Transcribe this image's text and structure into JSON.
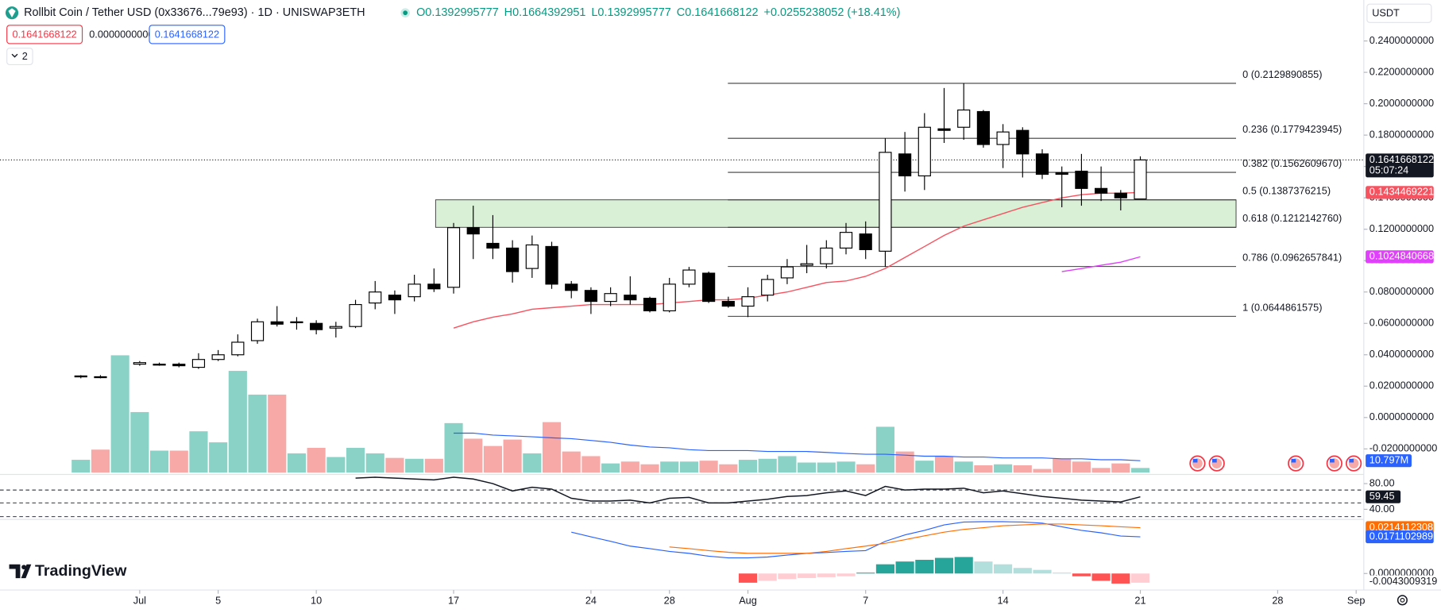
{
  "header": {
    "symbol": "Rollbit Coin / Tether USD (0x33676...79e93) · 1D · UNISWAP3ETH",
    "ohlc": [
      "O0.1392995777",
      "H0.1664392951",
      "L0.1392995777",
      "C0.1641668122",
      "+0.0255238052 (+18.41%)"
    ],
    "bid": "0.1641668122",
    "spread": "0.0000000000",
    "ask": "0.1641668122",
    "indicators_count": "2",
    "currency": "USDT",
    "brand": "TradingView"
  },
  "chart_data": [
    {
      "type": "candlestick",
      "xlim": [
        -4.12,
        65.39
      ],
      "ylim": [
        -0.0351,
        0.2661
      ],
      "xticks": [
        {
          "value": 3,
          "label": "Jul"
        },
        {
          "value": 7,
          "label": "5"
        },
        {
          "value": 12,
          "label": "10"
        },
        {
          "value": 19,
          "label": "17"
        },
        {
          "value": 26,
          "label": "24"
        },
        {
          "value": 30,
          "label": "28"
        },
        {
          "value": 34,
          "label": "Aug"
        },
        {
          "value": 40,
          "label": "7"
        },
        {
          "value": 47,
          "label": "14"
        },
        {
          "value": 54,
          "label": "21"
        },
        {
          "value": 61,
          "label": "28"
        },
        {
          "value": 65,
          "label": "Sep"
        }
      ],
      "yticks": [
        {
          "value": 0.24,
          "label": "0.2400000000"
        },
        {
          "value": 0.22,
          "label": "0.2200000000"
        },
        {
          "value": 0.2,
          "label": "0.2000000000"
        },
        {
          "value": 0.18,
          "label": "0.1800000000"
        },
        {
          "value": 0.16,
          "label": "0.1600000000"
        },
        {
          "value": 0.14,
          "label": "0.1400000000"
        },
        {
          "value": 0.12,
          "label": "0.1200000000"
        },
        {
          "value": 0.1,
          "label": "0.1000000000"
        },
        {
          "value": 0.08,
          "label": "0.0800000000"
        },
        {
          "value": 0.06,
          "label": "0.0600000000"
        },
        {
          "value": 0.04,
          "label": "0.0400000000"
        },
        {
          "value": 0.02,
          "label": "0.0200000000"
        },
        {
          "value": 0,
          "label": "0.0000000000"
        },
        {
          "value": -0.02,
          "label": "-0.0200000000"
        }
      ],
      "open": [
        0.026,
        0.026,
        0.024,
        0.034,
        0.034,
        0.034,
        0.032,
        0.037,
        0.04,
        0.049,
        0.061,
        0.061,
        0.06,
        0.057,
        0.058,
        0.073,
        0.078,
        0.077,
        0.085,
        0.083,
        0.121,
        0.111,
        0.108,
        0.095,
        0.109,
        0.085,
        0.081,
        0.074,
        0.078,
        0.076,
        0.068,
        0.085,
        0.092,
        0.074,
        0.071,
        0.078,
        0.089,
        0.097,
        0.098,
        0.108,
        0.117,
        0.106,
        0.168,
        0.154,
        0.184,
        0.185,
        0.195,
        0.174,
        0.183,
        0.168,
        0.156,
        0.157,
        0.146,
        0.143,
        0.1392995777
      ],
      "high": [
        0.027,
        0.027,
        0.039,
        0.036,
        0.035,
        0.035,
        0.041,
        0.043,
        0.053,
        0.063,
        0.071,
        0.064,
        0.062,
        0.061,
        0.075,
        0.087,
        0.081,
        0.091,
        0.095,
        0.124,
        0.135,
        0.129,
        0.113,
        0.116,
        0.112,
        0.087,
        0.083,
        0.083,
        0.09,
        0.077,
        0.089,
        0.096,
        0.093,
        0.077,
        0.083,
        0.091,
        0.101,
        0.11,
        0.113,
        0.124,
        0.125,
        0.178,
        0.182,
        0.194,
        0.21,
        0.213,
        0.196,
        0.187,
        0.185,
        0.171,
        0.16,
        0.168,
        0.16,
        0.145,
        0.1664392951
      ],
      "low": [
        0.025,
        0.025,
        0.024,
        0.033,
        0.033,
        0.032,
        0.031,
        0.036,
        0.039,
        0.047,
        0.058,
        0.056,
        0.053,
        0.051,
        0.057,
        0.069,
        0.066,
        0.074,
        0.08,
        0.079,
        0.101,
        0.101,
        0.086,
        0.089,
        0.082,
        0.076,
        0.066,
        0.071,
        0.072,
        0.067,
        0.067,
        0.083,
        0.073,
        0.07,
        0.064,
        0.074,
        0.085,
        0.092,
        0.095,
        0.104,
        0.101,
        0.096,
        0.144,
        0.145,
        0.175,
        0.177,
        0.172,
        0.159,
        0.153,
        0.152,
        0.134,
        0.135,
        0.138,
        0.132,
        0.1392995777
      ],
      "close": [
        0.0265,
        0.0255,
        0.034,
        0.035,
        0.034,
        0.033,
        0.037,
        0.04,
        0.048,
        0.061,
        0.0595,
        0.061,
        0.056,
        0.058,
        0.072,
        0.08,
        0.075,
        0.085,
        0.082,
        0.121,
        0.117,
        0.108,
        0.093,
        0.11,
        0.085,
        0.081,
        0.074,
        0.079,
        0.075,
        0.068,
        0.085,
        0.094,
        0.074,
        0.071,
        0.077,
        0.088,
        0.096,
        0.098,
        0.108,
        0.118,
        0.107,
        0.169,
        0.154,
        0.185,
        0.183,
        0.196,
        0.174,
        0.182,
        0.168,
        0.155,
        0.155,
        0.146,
        0.143,
        0.14,
        0.1641668122
      ],
      "countdown": "05:07:24",
      "moving_averages": [
        {
          "color": "#f7525f",
          "values": [
            null,
            null,
            null,
            null,
            null,
            null,
            null,
            null,
            null,
            null,
            null,
            null,
            null,
            null,
            null,
            null,
            null,
            null,
            null,
            0.057,
            0.061,
            0.064,
            0.066,
            0.069,
            0.07,
            0.071,
            0.072,
            0.072,
            0.072,
            0.072,
            0.073,
            0.074,
            0.075,
            0.075,
            0.076,
            0.078,
            0.08,
            0.083,
            0.086,
            0.087,
            0.09,
            0.095,
            0.102,
            0.109,
            0.116,
            0.122,
            0.126,
            0.13,
            0.134,
            0.137,
            0.14,
            0.142,
            0.143,
            0.143,
            0.1434469221
          ]
        },
        {
          "color": "#e040fb",
          "values": [
            null,
            null,
            null,
            null,
            null,
            null,
            null,
            null,
            null,
            null,
            null,
            null,
            null,
            null,
            null,
            null,
            null,
            null,
            null,
            null,
            null,
            null,
            null,
            null,
            null,
            null,
            null,
            null,
            null,
            null,
            null,
            null,
            null,
            null,
            null,
            null,
            null,
            null,
            null,
            null,
            null,
            null,
            null,
            null,
            null,
            null,
            null,
            null,
            null,
            null,
            0.093,
            0.095,
            0.097,
            0.099,
            0.1024840668
          ]
        }
      ],
      "fib_levels": [
        {
          "price": 0.2129890855,
          "label": "0 (0.2129890855)"
        },
        {
          "price": 0.1779423945,
          "label": "0.236 (0.1779423945)"
        },
        {
          "price": 0.156260967,
          "label": "0.382 (0.1562609670)"
        },
        {
          "price": 0.1387376215,
          "label": "0.5 (0.1387376215)"
        },
        {
          "price": 0.121214276,
          "label": "0.618 (0.1212142760)"
        },
        {
          "price": 0.0962657841,
          "label": "0.786 (0.0962657841)"
        },
        {
          "price": 0.0644861575,
          "label": "1 (0.0644861575)"
        }
      ]
    },
    {
      "type": "bar",
      "ylim": [
        0,
        108
      ],
      "up_color": "#8ad2c6",
      "down_color": "#f7a9a7",
      "values": [
        11.6,
        20.8,
        106.2,
        54.8,
        19.9,
        19.9,
        37.4,
        27.4,
        92.1,
        70.6,
        70.6,
        17.4,
        22.4,
        14.1,
        22.4,
        17.4,
        13.3,
        12.5,
        12.5,
        44.8,
        30.7,
        24.1,
        29.9,
        17.4,
        45.7,
        19.1,
        14.9,
        8.3,
        10.0,
        7.5,
        10.0,
        10.0,
        10.8,
        7.5,
        11.6,
        12.5,
        14.9,
        9.1,
        9.1,
        10.0,
        7.5,
        41.5,
        19.1,
        10.8,
        14.9,
        10.0,
        6.6,
        7.5,
        6.6,
        3.3,
        12.5,
        10.0,
        4.2,
        8.3,
        4.2
      ],
      "ma": {
        "color": "#2962ff",
        "values": [
          null,
          null,
          null,
          null,
          null,
          null,
          null,
          null,
          null,
          null,
          null,
          null,
          null,
          null,
          null,
          null,
          null,
          null,
          null,
          35.7,
          35.7,
          34.0,
          33.2,
          32.4,
          31.5,
          30.7,
          29.1,
          27.4,
          24.9,
          23.2,
          22.4,
          20.8,
          19.9,
          19.9,
          19.9,
          19.1,
          19.1,
          19.1,
          18.3,
          17.4,
          16.6,
          16.6,
          15.8,
          14.9,
          14.9,
          14.1,
          14.1,
          13.3,
          13.3,
          13.3,
          12.5,
          12.5,
          11.6,
          11.6,
          10.797
        ],
        "last_label": "10.797M"
      }
    },
    {
      "type": "line",
      "ylim": [
        25.71,
        92.86
      ],
      "color": "#131722",
      "yticks": [
        {
          "value": 80,
          "label": "80.00"
        },
        {
          "value": 40,
          "label": "40.00"
        }
      ],
      "bands": [
        70,
        50
      ],
      "values": [
        null,
        null,
        null,
        null,
        null,
        null,
        null,
        null,
        null,
        null,
        null,
        null,
        null,
        null,
        88.6,
        90,
        88.6,
        87.1,
        85.7,
        90,
        87.1,
        80,
        68.6,
        74.3,
        71.4,
        57.1,
        52.9,
        52.9,
        54.3,
        50,
        57.1,
        58.6,
        50,
        50,
        52.9,
        55.7,
        60,
        61.4,
        65.7,
        68.6,
        61.4,
        75.7,
        70,
        71.4,
        71.4,
        72.9,
        65.7,
        68.6,
        64.3,
        60,
        57.1,
        54.3,
        52.9,
        51.4,
        59.45
      ]
    },
    {
      "type": "macd",
      "ylim": [
        -0.0073,
        0.0244
      ],
      "yticks": [
        {
          "value": 0,
          "label": "0.0000000000"
        }
      ],
      "macd": {
        "color": "#2962ff",
        "values": [
          null,
          null,
          null,
          null,
          null,
          null,
          null,
          null,
          null,
          null,
          null,
          null,
          null,
          null,
          null,
          null,
          null,
          null,
          null,
          null,
          null,
          null,
          null,
          null,
          null,
          0.0193,
          0.0171,
          0.015,
          0.0128,
          0.0116,
          0.0103,
          0.0094,
          0.0081,
          0.0073,
          0.0073,
          0.0077,
          0.0086,
          0.0094,
          0.0098,
          0.0103,
          0.0107,
          0.015,
          0.018,
          0.0201,
          0.0227,
          0.024,
          0.0242,
          0.0242,
          0.024,
          0.0235,
          0.0218,
          0.0201,
          0.019,
          0.0175,
          0.0171102989
        ]
      },
      "signal": {
        "color": "#ff6d00",
        "values": [
          null,
          null,
          null,
          null,
          null,
          null,
          null,
          null,
          null,
          null,
          null,
          null,
          null,
          null,
          null,
          null,
          null,
          null,
          null,
          null,
          null,
          null,
          null,
          null,
          null,
          null,
          null,
          null,
          null,
          null,
          0.0124,
          0.0116,
          0.0107,
          0.0099,
          0.0094,
          0.0094,
          0.0094,
          0.0094,
          0.0103,
          0.0116,
          0.0128,
          0.0141,
          0.0158,
          0.0176,
          0.0193,
          0.0206,
          0.0214,
          0.0223,
          0.0227,
          0.0231,
          0.0231,
          0.0227,
          0.0223,
          0.0218,
          0.0214112308
        ]
      },
      "histogram": {
        "colors": [
          "#26a69a",
          "#b2dfdb",
          "#ff5252",
          "#ffcdd2"
        ],
        "values": [
          null,
          null,
          null,
          null,
          null,
          null,
          null,
          null,
          null,
          null,
          null,
          null,
          null,
          null,
          null,
          null,
          null,
          null,
          null,
          null,
          null,
          null,
          null,
          null,
          null,
          null,
          null,
          null,
          null,
          null,
          null,
          null,
          null,
          null,
          -0.0043,
          -0.0034,
          -0.0026,
          -0.0021,
          -0.0017,
          -0.0013,
          0.0004,
          0.0043,
          0.0056,
          0.0064,
          0.0073,
          0.0077,
          0.0056,
          0.0043,
          0.0026,
          0.0017,
          0.0004,
          -0.0013,
          -0.0034,
          -0.0047,
          -0.0043009319
        ]
      }
    }
  ]
}
